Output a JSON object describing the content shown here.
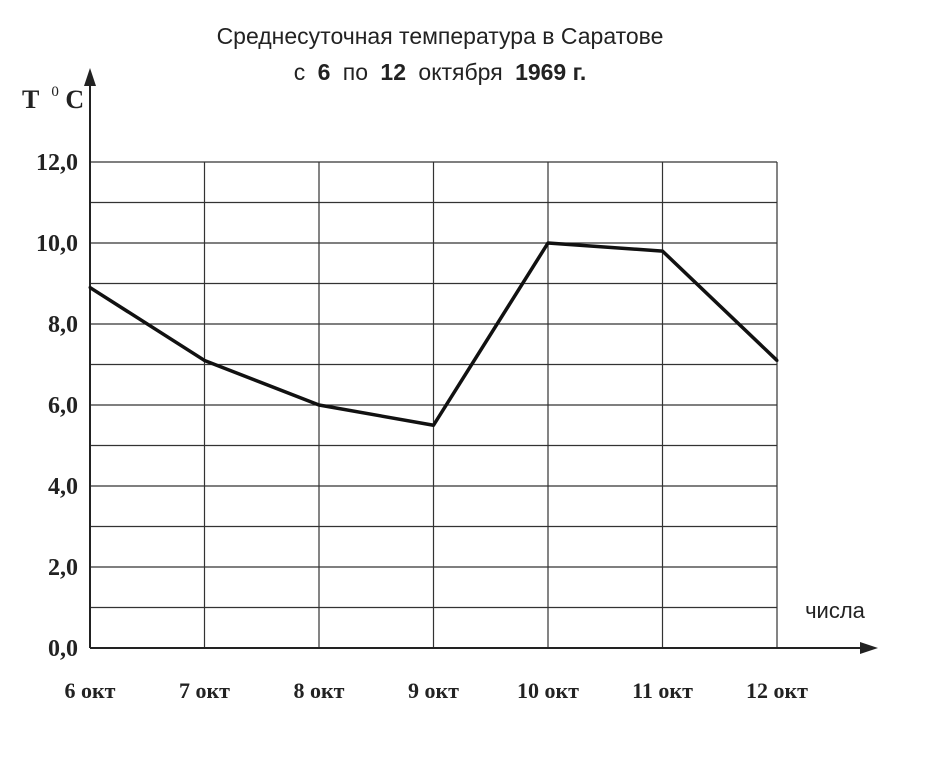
{
  "chart_data": {
    "type": "line",
    "title": "Среднесуточная температура в Саратове",
    "subtitle_prefix": "с",
    "subtitle_from": "6",
    "subtitle_mid": "по",
    "subtitle_to": "12",
    "subtitle_month": "октября",
    "subtitle_year": "1969 г.",
    "ylabel_main": "T",
    "ylabel_deg": "0",
    "ylabel_unit": "C",
    "xlabel": "числа",
    "categories": [
      "6 окт",
      "7 окт",
      "8 окт",
      "9 окт",
      "10 окт",
      "11 окт",
      "12 окт"
    ],
    "values": [
      8.9,
      7.1,
      6.0,
      5.5,
      10.0,
      9.8,
      7.1
    ],
    "yticks": [
      "0,0",
      "2,0",
      "4,0",
      "6,0",
      "8,0",
      "10,0",
      "12,0"
    ],
    "ylim": [
      0,
      12
    ],
    "grid": true,
    "legend": "none"
  }
}
